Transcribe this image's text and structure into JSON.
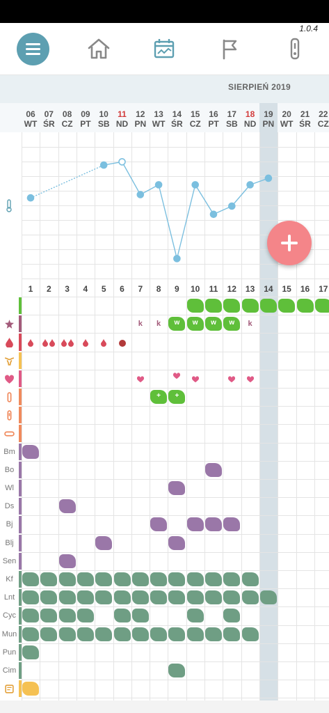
{
  "app": {
    "version": "1.0.4"
  },
  "nav": {
    "menu_icon": "hamburger-icon",
    "items": [
      {
        "icon": "home-icon"
      },
      {
        "icon": "chart-calendar-icon",
        "active": true
      },
      {
        "icon": "flag-icon"
      },
      {
        "icon": "thermometer-device-icon"
      }
    ]
  },
  "calendar": {
    "month": "SIERPIEŃ 2019",
    "dates": [
      {
        "d": "06",
        "w": "WT"
      },
      {
        "d": "07",
        "w": "ŚR"
      },
      {
        "d": "08",
        "w": "CZ"
      },
      {
        "d": "09",
        "w": "PT"
      },
      {
        "d": "10",
        "w": "SB"
      },
      {
        "d": "11",
        "w": "ND",
        "red": true
      },
      {
        "d": "12",
        "w": "PN"
      },
      {
        "d": "13",
        "w": "WT"
      },
      {
        "d": "14",
        "w": "ŚR"
      },
      {
        "d": "15",
        "w": "CZ"
      },
      {
        "d": "16",
        "w": "PT"
      },
      {
        "d": "17",
        "w": "SB"
      },
      {
        "d": "18",
        "w": "ND",
        "red": true
      },
      {
        "d": "19",
        "w": "PN"
      },
      {
        "d": "20",
        "w": "WT"
      },
      {
        "d": "21",
        "w": "ŚR"
      },
      {
        "d": "22",
        "w": "CZ"
      }
    ],
    "cycle_days": [
      "1",
      "2",
      "3",
      "4",
      "5",
      "6",
      "7",
      "8",
      "9",
      "10",
      "11",
      "12",
      "13",
      "14",
      "15",
      "16",
      "17"
    ]
  },
  "temperature": {
    "icon": "thermometer-icon",
    "values": [
      36.4,
      null,
      null,
      null,
      36.6,
      36.62,
      36.42,
      36.48,
      36.03,
      36.48,
      36.3,
      36.35,
      36.48,
      36.52
    ]
  },
  "rows": [
    {
      "key": "fertile",
      "label": "",
      "icon": "green-bar",
      "strip": "#5fbf3a"
    },
    {
      "key": "mucus",
      "label": "",
      "icon": "mucus-icon",
      "strip": "#a35b7a"
    },
    {
      "key": "bleeding",
      "label": "",
      "icon": "drop-icon",
      "strip": "#d84a5a"
    },
    {
      "key": "cervix",
      "label": "",
      "icon": "uterus-icon",
      "strip": "#f5c153"
    },
    {
      "key": "sex",
      "label": "",
      "icon": "heart-icon",
      "strip": "#e05a86"
    },
    {
      "key": "test1",
      "label": "",
      "icon": "ovulation-test-icon",
      "strip": "#f08a5d"
    },
    {
      "key": "test2",
      "label": "",
      "icon": "pregnancy-test-icon",
      "strip": "#f08a5d"
    },
    {
      "key": "pill",
      "label": "",
      "icon": "pill-icon",
      "strip": "#f08a5d"
    },
    {
      "key": "bm",
      "label": "Bm",
      "strip": "#9a77a8"
    },
    {
      "key": "bo",
      "label": "Bo",
      "strip": "#9a77a8"
    },
    {
      "key": "wl",
      "label": "Wl",
      "strip": "#9a77a8"
    },
    {
      "key": "ds",
      "label": "Ds",
      "strip": "#9a77a8"
    },
    {
      "key": "bj",
      "label": "Bj",
      "strip": "#9a77a8"
    },
    {
      "key": "blj",
      "label": "Blj",
      "strip": "#9a77a8"
    },
    {
      "key": "sen",
      "label": "Sen",
      "strip": "#9a77a8"
    },
    {
      "key": "kf",
      "label": "Kf",
      "strip": "#6f9e84"
    },
    {
      "key": "lnt",
      "label": "Lnt",
      "strip": "#6f9e84"
    },
    {
      "key": "cyc",
      "label": "Cyc",
      "strip": "#6f9e84"
    },
    {
      "key": "mun",
      "label": "Mun",
      "strip": "#6f9e84"
    },
    {
      "key": "pun",
      "label": "Pun",
      "strip": "#6f9e84"
    },
    {
      "key": "cim",
      "label": "Cim",
      "strip": "#6f9e84"
    },
    {
      "key": "note",
      "label": "",
      "icon": "note-icon",
      "strip": "#f5c153"
    }
  ],
  "entries": {
    "fertile": [
      10,
      11,
      12,
      13,
      14,
      15,
      16,
      17
    ],
    "mucus": [
      {
        "day": 7,
        "text": "k"
      },
      {
        "day": 8,
        "text": "k"
      },
      {
        "day": 9,
        "text": "w",
        "blob": true
      },
      {
        "day": 10,
        "text": "w",
        "blob": true
      },
      {
        "day": 11,
        "text": "w",
        "blob": true
      },
      {
        "day": 12,
        "text": "w",
        "blob": true
      },
      {
        "day": 13,
        "text": "k"
      }
    ],
    "bleeding": [
      {
        "day": 1,
        "drops": 1
      },
      {
        "day": 2,
        "drops": 2
      },
      {
        "day": 3,
        "drops": 2
      },
      {
        "day": 4,
        "drops": 1
      },
      {
        "day": 5,
        "drops": 1
      },
      {
        "day": 6,
        "drops": 1,
        "dark": true
      }
    ],
    "sex": [
      7,
      9,
      10,
      12,
      13
    ],
    "test1": [
      {
        "day": 8,
        "text": "+"
      },
      {
        "day": 9,
        "text": "+"
      }
    ],
    "bm": [
      1
    ],
    "bo": [
      11
    ],
    "wl": [
      9
    ],
    "ds": [
      3
    ],
    "bj": [
      8,
      10,
      11,
      12
    ],
    "blj": [
      5,
      9
    ],
    "sen": [
      3
    ],
    "kf": [
      1,
      2,
      3,
      4,
      5,
      6,
      7,
      8,
      9,
      10,
      11,
      12,
      13
    ],
    "lnt": [
      1,
      2,
      3,
      4,
      5,
      6,
      7,
      8,
      9,
      10,
      11,
      12,
      13,
      14
    ],
    "cyc": [
      1,
      2,
      3,
      4,
      6,
      7,
      10,
      12
    ],
    "mun": [
      1,
      2,
      3,
      4,
      5,
      6,
      7,
      8,
      9,
      10,
      11,
      12,
      13
    ],
    "pun": [
      1
    ],
    "cim": [
      9
    ],
    "note": [
      1
    ]
  },
  "colors": {
    "accent": "#5d9fb1",
    "fab": "#f48589",
    "fertile": "#5fbf3a",
    "symptom": "#9a77a8",
    "medication": "#6f9e84",
    "mucus_text": "#a35b7a",
    "bleeding": "#d84a5a",
    "temperature_line": "#7bbfdf"
  },
  "fab": {
    "icon": "plus-icon"
  }
}
